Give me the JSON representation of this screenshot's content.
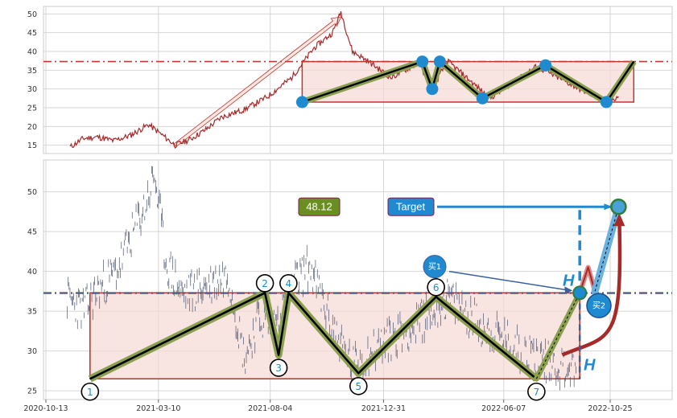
{
  "chart_data": [
    {
      "type": "line",
      "panel": "overview",
      "title": "",
      "xlabel": "",
      "ylabel": "",
      "ylim": [
        13,
        52
      ],
      "y_ticks": [
        15,
        20,
        25,
        30,
        35,
        40,
        45,
        50
      ],
      "grid": true,
      "resistance_level": 37.3,
      "support_level": 26.5,
      "price_points": [
        {
          "x": "2020-11-14",
          "y": 14.5
        },
        {
          "x": "2020-12-01",
          "y": 16.8
        },
        {
          "x": "2020-12-20",
          "y": 17.2
        },
        {
          "x": "2021-01-10",
          "y": 16.2
        },
        {
          "x": "2021-02-01",
          "y": 17.6
        },
        {
          "x": "2021-02-25",
          "y": 20.5
        },
        {
          "x": "2021-03-10",
          "y": 18.5
        },
        {
          "x": "2021-04-01",
          "y": 15.0
        },
        {
          "x": "2021-04-20",
          "y": 16.5
        },
        {
          "x": "2021-05-10",
          "y": 19.0
        },
        {
          "x": "2021-06-01",
          "y": 22.5
        },
        {
          "x": "2021-07-01",
          "y": 24.5
        },
        {
          "x": "2021-08-01",
          "y": 28.0
        },
        {
          "x": "2021-09-01",
          "y": 33.0
        },
        {
          "x": "2021-10-01",
          "y": 41.0
        },
        {
          "x": "2021-10-25",
          "y": 45.0
        },
        {
          "x": "2021-11-05",
          "y": 50.5
        },
        {
          "x": "2021-11-20",
          "y": 40.0
        },
        {
          "x": "2021-12-10",
          "y": 37.5
        },
        {
          "x": "2022-01-10",
          "y": 33.0
        },
        {
          "x": "2022-02-15",
          "y": 37.0
        },
        {
          "x": "2022-03-05",
          "y": 30.0
        },
        {
          "x": "2022-03-25",
          "y": 37.5
        },
        {
          "x": "2022-05-20",
          "y": 27.5
        },
        {
          "x": "2022-07-20",
          "y": 36.0
        },
        {
          "x": "2022-09-15",
          "y": 30.0
        },
        {
          "x": "2022-10-20",
          "y": 26.5
        },
        {
          "x": "2022-11-05",
          "y": 28.0
        }
      ],
      "wave_points": [
        {
          "x": "2021-09-15",
          "y": 26.5
        },
        {
          "x": "2022-02-20",
          "y": 37.3
        },
        {
          "x": "2022-03-05",
          "y": 30.0
        },
        {
          "x": "2022-03-15",
          "y": 37.3
        },
        {
          "x": "2022-05-10",
          "y": 27.5
        },
        {
          "x": "2022-08-01",
          "y": 36.3
        },
        {
          "x": "2022-10-20",
          "y": 26.5
        },
        {
          "x": "2022-11-25",
          "y": 37.3
        }
      ],
      "arrow": {
        "from": {
          "x": "2021-04-01",
          "y": 15.0
        },
        "to": {
          "x": "2021-11-05",
          "y": 50.5
        }
      }
    },
    {
      "type": "line",
      "panel": "detail",
      "title": "",
      "xlabel": "",
      "ylabel": "",
      "ylim": [
        24,
        54
      ],
      "y_ticks": [
        25,
        30,
        35,
        40,
        45,
        50
      ],
      "x_ticks": [
        "2020-10-13",
        "2021-03-10",
        "2021-08-04",
        "2021-12-31",
        "2022-06-07",
        "2022-10-25"
      ],
      "grid": true,
      "resistance_level": 37.3,
      "support_level": 26.5,
      "target_value": "48.12",
      "target_label": "Target",
      "target_y": 48.12,
      "buy_labels": [
        "买1",
        "买2"
      ],
      "height_label": "H",
      "price_points": [
        {
          "x": "2020-11-10",
          "y": 36.5
        },
        {
          "x": "2020-12-01",
          "y": 35.0
        },
        {
          "x": "2020-12-20",
          "y": 37.5
        },
        {
          "x": "2021-01-15",
          "y": 40.0
        },
        {
          "x": "2021-02-01",
          "y": 44.0
        },
        {
          "x": "2021-02-20",
          "y": 48.0
        },
        {
          "x": "2021-03-05",
          "y": 52.0
        },
        {
          "x": "2021-03-20",
          "y": 41.0
        },
        {
          "x": "2021-04-10",
          "y": 37.0
        },
        {
          "x": "2021-05-10",
          "y": 38.0
        },
        {
          "x": "2021-06-10",
          "y": 39.5
        },
        {
          "x": "2021-07-01",
          "y": 29.0
        },
        {
          "x": "2021-07-20",
          "y": 34.0
        },
        {
          "x": "2021-08-10",
          "y": 33.0
        },
        {
          "x": "2021-09-01",
          "y": 38.0
        },
        {
          "x": "2021-09-25",
          "y": 40.5
        },
        {
          "x": "2021-10-20",
          "y": 34.0
        },
        {
          "x": "2021-11-20",
          "y": 28.0
        },
        {
          "x": "2022-01-01",
          "y": 31.0
        },
        {
          "x": "2022-02-10",
          "y": 33.0
        },
        {
          "x": "2022-03-25",
          "y": 36.5
        },
        {
          "x": "2022-05-10",
          "y": 33.0
        },
        {
          "x": "2022-07-01",
          "y": 30.0
        },
        {
          "x": "2022-08-20",
          "y": 28.0
        },
        {
          "x": "2022-09-10",
          "y": 27.5
        }
      ],
      "wave_points": [
        {
          "label": "1",
          "x": "2020-12-10",
          "y": 26.5
        },
        {
          "label": "2",
          "x": "2021-07-28",
          "y": 37.3
        },
        {
          "label": "3",
          "x": "2021-08-15",
          "y": 29.5
        },
        {
          "label": "4",
          "x": "2021-08-28",
          "y": 37.3
        },
        {
          "label": "5",
          "x": "2021-11-28",
          "y": 27.2
        },
        {
          "label": "6",
          "x": "2022-03-10",
          "y": 36.8
        },
        {
          "label": "7",
          "x": "2022-07-20",
          "y": 26.5
        }
      ],
      "breakout_path": [
        {
          "x": "2022-07-20",
          "y": 26.5
        },
        {
          "x": "2022-09-15",
          "y": 37.3
        },
        {
          "x": "2022-09-26",
          "y": 40.5
        },
        {
          "x": "2022-10-05",
          "y": 37.5
        },
        {
          "x": "2022-11-05",
          "y": 48.12
        }
      ]
    }
  ]
}
